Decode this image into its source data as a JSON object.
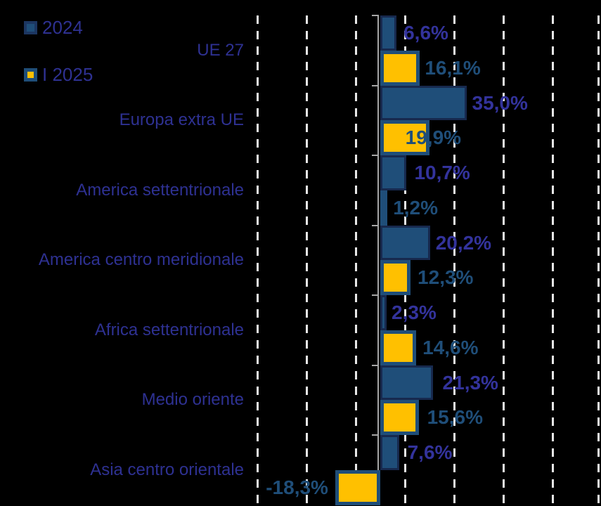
{
  "legend": {
    "items": [
      {
        "label": "2024",
        "swatch": "blue-on-navy"
      },
      {
        "label": "I 2025",
        "swatch": "yellow-on-blue"
      }
    ]
  },
  "chart_data": {
    "type": "bar",
    "orientation": "horizontal",
    "title": "",
    "xlabel": "",
    "ylabel": "",
    "categories": [
      "UE 27",
      "Europa extra UE",
      "America settentrionale",
      "America centro meridionale",
      "Africa settentrionale",
      "Medio oriente",
      "Asia centro orientale"
    ],
    "series": [
      {
        "name": "2024",
        "values": [
          6.6,
          35.0,
          10.7,
          20.2,
          2.3,
          21.3,
          7.6
        ],
        "labels": [
          "6,6%",
          "35,0%",
          "10,7%",
          "20,2%",
          "2,3%",
          "21,3%",
          "7,6%"
        ],
        "fill": "#1F4E79",
        "border": "#17294E",
        "label_color": "#33339C"
      },
      {
        "name": "I 2025",
        "values": [
          16.1,
          19.9,
          1.2,
          12.3,
          14.6,
          15.6,
          -18.3
        ],
        "labels": [
          "16,1%",
          "19,9%",
          "1,2%",
          "12,3%",
          "14,6%",
          "15,6%",
          "-18,3%"
        ],
        "fill": "#FFC000",
        "border": "#1F4E79",
        "label_color": "#1F4E79"
      }
    ],
    "xlim": [
      -50,
      90
    ],
    "gridlines_at": [
      -50,
      -30,
      -10,
      10,
      30,
      50,
      70,
      90
    ],
    "grid": "dashed-vertical",
    "legend_position": "top-left",
    "value_label_format": "decimal-comma-percent",
    "axis_zero_line": true
  },
  "colors": {
    "background": "#000000",
    "bar_2024_fill": "#1F4E79",
    "bar_2024_border": "#17294E",
    "bar_2025_fill": "#FFC000",
    "bar_2025_border": "#1F4E79",
    "value_label_2024": "#33339C",
    "value_label_2025": "#1F4E79",
    "category_text": "#2E3192",
    "gridline": "#E7E7E7",
    "axis_line": "#A6A6A6"
  }
}
